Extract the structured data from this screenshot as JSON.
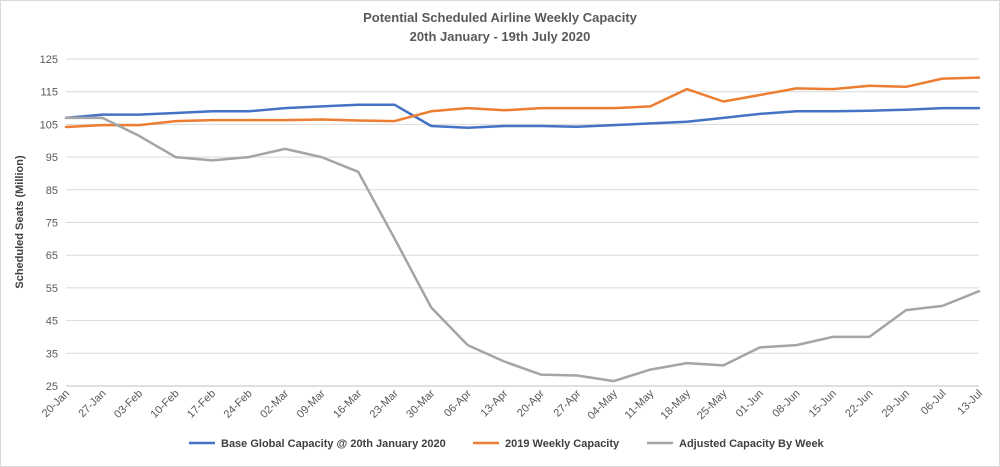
{
  "chart_data": {
    "type": "line",
    "title": "Potential Scheduled Airline Weekly Capacity",
    "subtitle": "20th January - 19th July 2020",
    "xlabel": "",
    "ylabel": "Scheduled Seats (Million)",
    "ylim": [
      25,
      125
    ],
    "yticks": [
      25,
      35,
      45,
      55,
      65,
      75,
      85,
      95,
      105,
      115,
      125
    ],
    "grid": true,
    "legend_position": "bottom",
    "categories": [
      "20-Jan",
      "27-Jan",
      "03-Feb",
      "10-Feb",
      "17-Feb",
      "24-Feb",
      "02-Mar",
      "09-Mar",
      "16-Mar",
      "23-Mar",
      "30-Mar",
      "06-Apr",
      "13-Apr",
      "20-Apr",
      "27-Apr",
      "04-May",
      "11-May",
      "18-May",
      "25-May",
      "01-Jun",
      "08-Jun",
      "15-Jun",
      "22-Jun",
      "29-Jun",
      "06-Jul",
      "13-Jul"
    ],
    "series": [
      {
        "name": "Base Global Capacity @ 20th January 2020",
        "color": "#4472c4",
        "values": [
          107,
          108,
          108,
          108.5,
          109,
          109,
          110,
          110.5,
          111,
          111,
          104.5,
          104,
          104.5,
          104.5,
          104.3,
          104.8,
          105.3,
          105.8,
          107,
          108.2,
          109,
          109,
          109.2,
          109.5,
          110,
          110
        ]
      },
      {
        "name": "2019 Weekly Capacity",
        "color": "#ed7d31",
        "values": [
          104.2,
          104.8,
          104.8,
          106,
          106.3,
          106.3,
          106.3,
          106.5,
          106.2,
          106,
          109,
          110,
          109.3,
          110,
          110,
          110,
          110.5,
          115.8,
          112,
          114,
          116,
          115.8,
          116.8,
          116.5,
          119,
          119.3
        ]
      },
      {
        "name": "Adjusted Capacity By Week",
        "color": "#a5a5a5",
        "values": [
          107,
          107,
          101.5,
          95,
          94,
          95,
          97.5,
          95,
          90.5,
          70,
          49,
          37.5,
          32.5,
          28.5,
          28.2,
          26.5,
          30,
          32,
          31.3,
          36.8,
          37.5,
          40,
          40,
          48.2,
          49.5,
          54
        ]
      }
    ]
  }
}
